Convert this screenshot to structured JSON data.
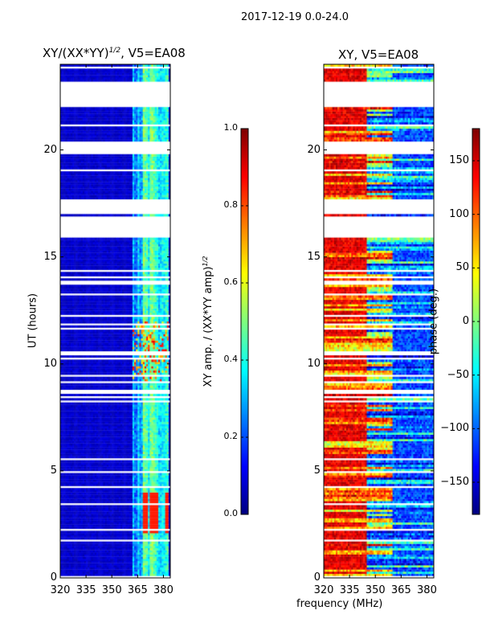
{
  "chart_data": [
    {
      "type": "heatmap",
      "suptitle": "2017-12-19 0.0-24.0",
      "title": "XY/(XX*YY)^1/2, V5=EA08",
      "title_main": "XY/(XX*YY)",
      "title_sup": "1/2",
      "title_rest": ", V5=EA08",
      "xlabel": "frequency (MHz)",
      "ylabel": "UT (hours)",
      "xlim": [
        320,
        384
      ],
      "ylim": [
        0,
        24
      ],
      "xticks": [
        "320",
        "335",
        "350",
        "365",
        "380"
      ],
      "xtick_values": [
        320,
        335,
        350,
        365,
        380
      ],
      "yticks": [
        "0",
        "5",
        "10",
        "15",
        "20"
      ],
      "ytick_values": [
        0,
        5,
        10,
        15,
        20
      ],
      "colorbar": {
        "label_main": "XY amp. / (XX*YY amp)",
        "label_sup": "1/2",
        "range": [
          0,
          1
        ],
        "ticks": [
          "0.0",
          "0.2",
          "0.4",
          "0.6",
          "0.8",
          "1.0"
        ],
        "tick_values": [
          0,
          0.2,
          0.4,
          0.6,
          0.8,
          1.0
        ],
        "colormap": "jet"
      },
      "typical_value": 0.05,
      "bright_band_mhz": [
        362,
        382
      ],
      "bright_band_value": 0.35,
      "flagged_ut_intervals": [
        [
          22.7,
          23.2
        ],
        [
          22.1,
          22.65
        ],
        [
          19.9,
          20.4
        ],
        [
          17.0,
          17.6
        ],
        [
          15.9,
          16.9
        ]
      ]
    },
    {
      "type": "heatmap",
      "title": "XY, V5=EA08",
      "xlabel": "frequency (MHz)",
      "xlim": [
        320,
        384
      ],
      "ylim": [
        0,
        24
      ],
      "xticks": [
        "320",
        "335",
        "350",
        "365",
        "380"
      ],
      "xtick_values": [
        320,
        335,
        350,
        365,
        380
      ],
      "yticks": [
        "0",
        "5",
        "10",
        "15",
        "20"
      ],
      "ytick_values": [
        0,
        5,
        10,
        15,
        20
      ],
      "colorbar": {
        "label": "phase (deg.)",
        "range": [
          -180,
          180
        ],
        "ticks": [
          "−150",
          "−100",
          "−50",
          "0",
          "50",
          "100",
          "150"
        ],
        "tick_values": [
          -150,
          -100,
          -50,
          0,
          50,
          100,
          150
        ],
        "colormap": "jet"
      },
      "typical_value": 60,
      "flagged_ut_intervals": [
        [
          22.7,
          23.2
        ],
        [
          22.1,
          22.65
        ],
        [
          19.9,
          20.4
        ],
        [
          17.0,
          17.6
        ],
        [
          15.9,
          16.9
        ]
      ]
    }
  ]
}
